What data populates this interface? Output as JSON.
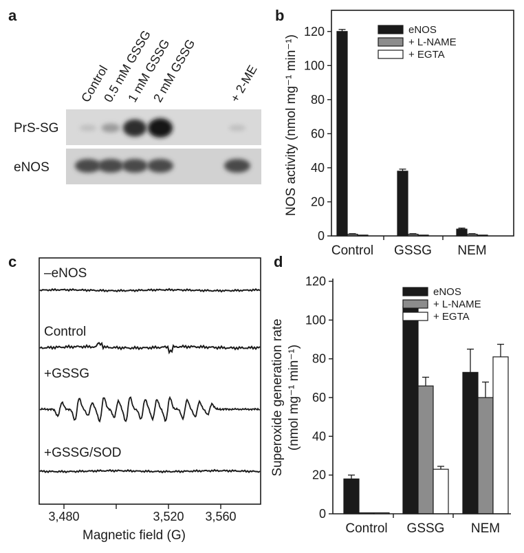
{
  "panels": {
    "a": {
      "letter": "a",
      "lanes": [
        "Control",
        "0.5 mM GSSG",
        "1 mM GSSG",
        "2 mM GSSG",
        "",
        "+ 2-ME"
      ],
      "rows": [
        "PrS-SG",
        "eNOS"
      ],
      "prssg_intensity": [
        0.05,
        0.25,
        0.85,
        1.0,
        0.0,
        0.05
      ],
      "enos_intensity": [
        0.85,
        0.85,
        0.85,
        0.85,
        0.0,
        0.85
      ]
    },
    "b": {
      "letter": "b"
    },
    "c": {
      "letter": "c",
      "traces": [
        "–eNOS",
        "Control",
        "+GSSG",
        "+GSSG/SOD"
      ],
      "xticks": [
        "3,480",
        "3,520",
        "3,560"
      ],
      "xlabel": "Magnetic field (G)"
    },
    "d": {
      "letter": "d"
    }
  },
  "chart_data": [
    {
      "panel": "b",
      "type": "bar",
      "categories": [
        "Control",
        "GSSG",
        "NEM"
      ],
      "series": [
        {
          "name": "eNOS",
          "values": [
            120,
            38,
            4
          ],
          "errors": [
            1.2,
            1.2,
            0.6
          ],
          "color": "#1a1a1a"
        },
        {
          "name": "+ L-NAME",
          "values": [
            1,
            1,
            1
          ],
          "errors": [
            0.3,
            0.3,
            0.3
          ],
          "color": "#8c8c8c"
        },
        {
          "name": "+ EGTA",
          "values": [
            0.5,
            0.5,
            0.5
          ],
          "errors": [
            0,
            0,
            0
          ],
          "color": "#ffffff"
        }
      ],
      "ylabel": "NOS activity (nmol mg⁻¹ min⁻¹)",
      "ylim": [
        0,
        130
      ],
      "yticks": [
        0,
        20,
        40,
        60,
        80,
        100,
        120
      ],
      "legend": "top-right"
    },
    {
      "panel": "d",
      "type": "bar",
      "categories": [
        "Control",
        "GSSG",
        "NEM"
      ],
      "series": [
        {
          "name": "eNOS",
          "values": [
            18,
            107,
            73
          ],
          "errors": [
            2,
            0.5,
            12
          ],
          "color": "#1a1a1a"
        },
        {
          "name": "+ L-NAME",
          "values": [
            0.5,
            66,
            60
          ],
          "errors": [
            0,
            4.5,
            8
          ],
          "color": "#8c8c8c"
        },
        {
          "name": "+ EGTA",
          "values": [
            0.5,
            23,
            81
          ],
          "errors": [
            0,
            1.5,
            6.5
          ],
          "color": "#ffffff"
        }
      ],
      "ylabel_line1": "Superoxide generation rate",
      "ylabel_line2": "(nmol mg⁻¹ min⁻¹)",
      "ylim": [
        0,
        120
      ],
      "yticks": [
        0,
        20,
        40,
        60,
        80,
        100,
        120
      ],
      "legend": "top-right"
    }
  ]
}
